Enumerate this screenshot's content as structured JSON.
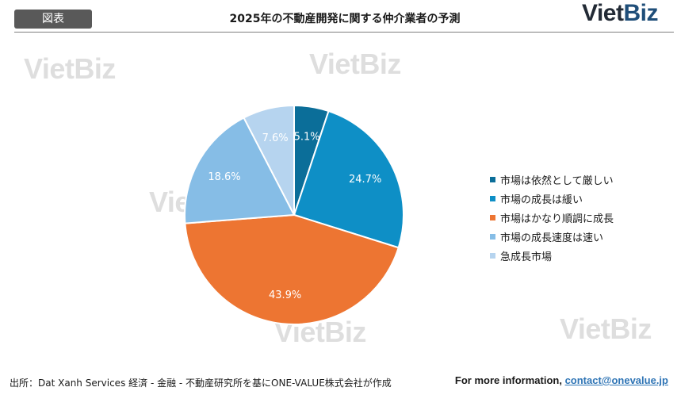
{
  "header": {
    "badge": "図表",
    "title": "2025年の不動産開発に関する仲介業者の予測",
    "logo_viet": "Viet",
    "logo_biz": "Biz"
  },
  "watermark": {
    "text": "VietBiz"
  },
  "chart_data": {
    "type": "pie",
    "title": "",
    "start_angle_deg": 0,
    "direction": "clockwise",
    "legend_position": "right",
    "slices": [
      {
        "label": "市場は依然として厳しい",
        "value": 5.1,
        "display": "5.1%",
        "color": "#0b6e99"
      },
      {
        "label": "市場の成長は緩い",
        "value": 24.7,
        "display": "24.7%",
        "color": "#0e8fc6"
      },
      {
        "label": "市場はかなり順調に成長",
        "value": 43.9,
        "display": "43.9%",
        "color": "#ed7532"
      },
      {
        "label": "市場の成長速度は速い",
        "value": 18.6,
        "display": "18.6%",
        "color": "#86bde6"
      },
      {
        "label": "急成長市場",
        "value": 7.6,
        "display": "7.6%",
        "color": "#b6d4ef"
      }
    ]
  },
  "footer": {
    "source": "出所：Dat Xanh Services 経済 - 金融 - 不動産研究所を基にONE-VALUE株式会社が作成",
    "info_label": "For more information, ",
    "contact": "contact@onevalue.jp"
  }
}
